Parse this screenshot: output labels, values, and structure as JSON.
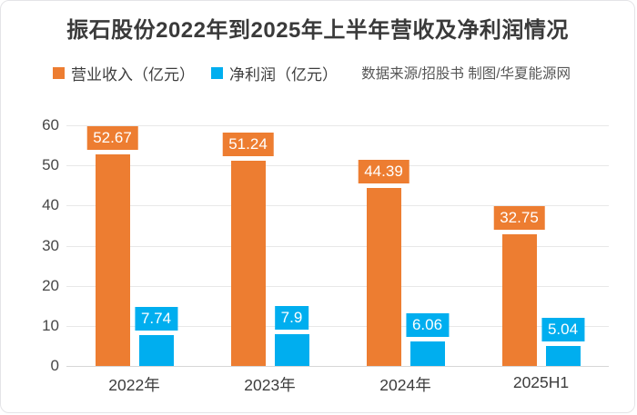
{
  "chart_data": {
    "type": "bar",
    "title": "振石股份2022年到2025年上半年营收及净利润情况",
    "source_note": "数据来源/招股书  制图/华夏能源网",
    "categories": [
      "2022年",
      "2023年",
      "2024年",
      "2025H1"
    ],
    "series": [
      {
        "name": "营业收入（亿元）",
        "color": "#ED7D31",
        "values": [
          52.67,
          51.24,
          44.39,
          32.75
        ]
      },
      {
        "name": "净利润（亿元）",
        "color": "#00AEEF",
        "values": [
          7.74,
          7.9,
          6.06,
          5.04
        ]
      }
    ],
    "ylim": [
      0,
      60
    ],
    "yticks": [
      0,
      10,
      20,
      30,
      40,
      50,
      60
    ],
    "grid": true,
    "legend_position": "top-left",
    "bar_value_labels": true,
    "colors": {
      "title_text": "#3a3a3a",
      "axis_text": "#474747",
      "gridline": "#e8e8e8"
    }
  }
}
